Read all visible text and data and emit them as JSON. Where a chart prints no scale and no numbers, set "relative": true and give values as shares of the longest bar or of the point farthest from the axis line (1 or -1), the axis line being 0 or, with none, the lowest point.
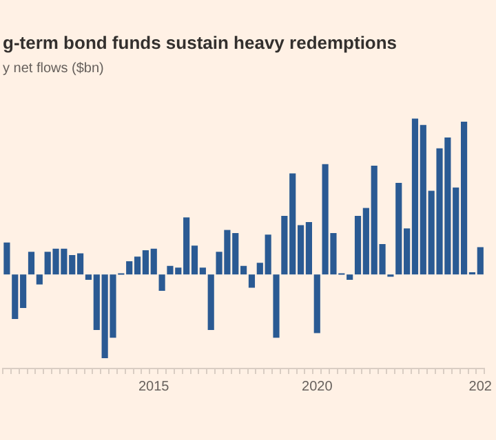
{
  "chart_data": {
    "type": "bar",
    "title": "g-term bond funds sustain heavy redemptions",
    "subtitle": "y net flows ($bn)",
    "relative": true,
    "color": "#2a5a93",
    "categories": [
      null,
      null,
      null,
      null,
      null,
      null,
      null,
      null,
      null,
      null,
      null,
      null,
      null,
      null,
      null,
      null,
      null,
      null,
      "2015",
      null,
      null,
      null,
      null,
      null,
      null,
      null,
      null,
      null,
      null,
      null,
      null,
      null,
      null,
      null,
      null,
      null,
      null,
      null,
      "2020",
      null,
      null,
      null,
      null,
      null,
      null,
      null,
      null,
      null,
      null,
      null,
      null,
      null,
      null,
      null,
      null,
      null,
      null,
      null,
      "202"
    ],
    "values": [
      0.21,
      -0.29,
      -0.22,
      0.15,
      -0.07,
      0.15,
      0.17,
      0.17,
      0.13,
      0.14,
      -0.04,
      -0.36,
      -0.54,
      -0.41,
      0.01,
      0.09,
      0.12,
      0.16,
      0.17,
      -0.11,
      0.06,
      0.05,
      0.37,
      0.19,
      0.05,
      -0.36,
      0.15,
      0.29,
      0.27,
      0.06,
      -0.09,
      0.08,
      0.26,
      -0.41,
      0.38,
      0.65,
      0.32,
      0.34,
      -0.38,
      0.71,
      0.27,
      0.01,
      -0.04,
      0.38,
      0.43,
      0.7,
      0.2,
      -0.02,
      0.59,
      0.3,
      1.0,
      0.96,
      0.54,
      0.81,
      0.88,
      0.56,
      0.98,
      0.02,
      0.18
    ]
  }
}
